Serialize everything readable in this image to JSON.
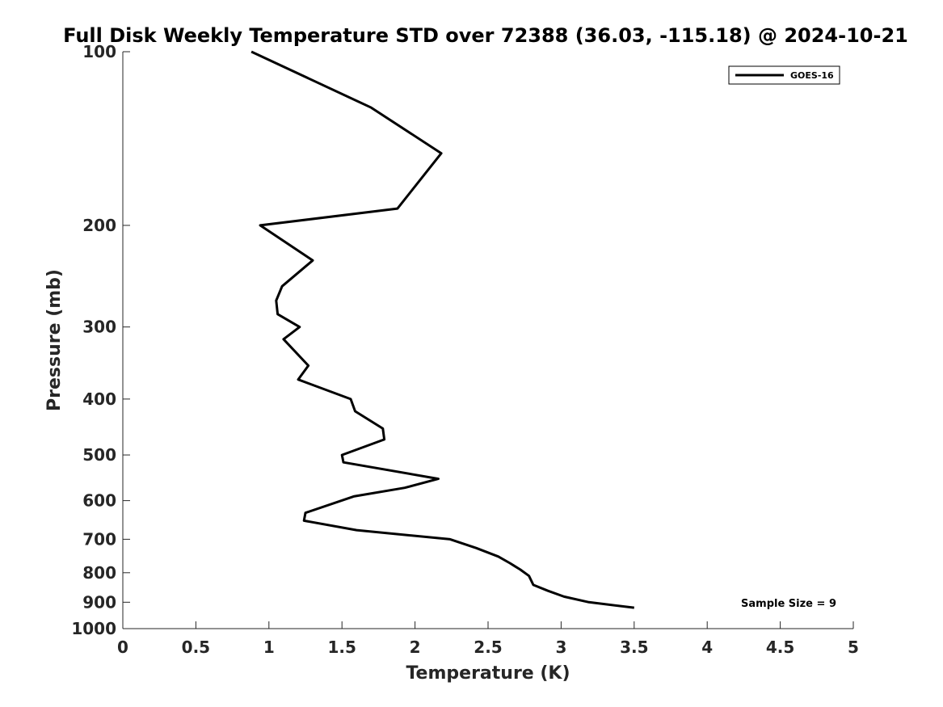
{
  "chart_data": {
    "type": "line",
    "title": "Full Disk Weekly Temperature STD over 72388 (36.03, -115.18) @ 2024-10-21",
    "xlabel": "Temperature (K)",
    "ylabel": "Pressure (mb)",
    "xlim": [
      0,
      5
    ],
    "ylim": [
      100,
      1000
    ],
    "y_scale": "log",
    "y_reversed": true,
    "xticks": [
      "0",
      "0.5",
      "1",
      "1.5",
      "2",
      "2.5",
      "3",
      "3.5",
      "4",
      "4.5",
      "5"
    ],
    "xtick_values": [
      0,
      0.5,
      1,
      1.5,
      2,
      2.5,
      3,
      3.5,
      4,
      4.5,
      5
    ],
    "yticks": [
      "100",
      "200",
      "300",
      "400",
      "500",
      "600",
      "700",
      "800",
      "900",
      "1000"
    ],
    "ytick_values": [
      100,
      200,
      300,
      400,
      500,
      600,
      700,
      800,
      900,
      1000
    ],
    "grid": false,
    "legend_position": "top-right",
    "annotation": "Sample Size = 9",
    "series": [
      {
        "name": "GOES-16",
        "color": "#000000",
        "x": [
          0.88,
          1.7,
          2.18,
          2.05,
          1.88,
          0.94,
          1.3,
          1.09,
          1.05,
          1.06,
          1.21,
          1.1,
          1.27,
          1.2,
          1.56,
          1.59,
          1.78,
          1.79,
          1.5,
          1.51,
          2.16,
          1.93,
          1.58,
          1.25,
          1.24,
          1.6,
          2.24,
          2.42,
          2.57,
          2.65,
          2.72,
          2.78,
          2.81,
          2.91,
          3.02,
          3.19,
          3.5
        ],
        "y": [
          100,
          125,
          150,
          165,
          187,
          200,
          230,
          255,
          270,
          285,
          300,
          315,
          350,
          370,
          400,
          420,
          450,
          470,
          500,
          515,
          550,
          570,
          590,
          630,
          650,
          675,
          700,
          725,
          750,
          770,
          790,
          810,
          840,
          860,
          880,
          900,
          920
        ]
      }
    ]
  }
}
